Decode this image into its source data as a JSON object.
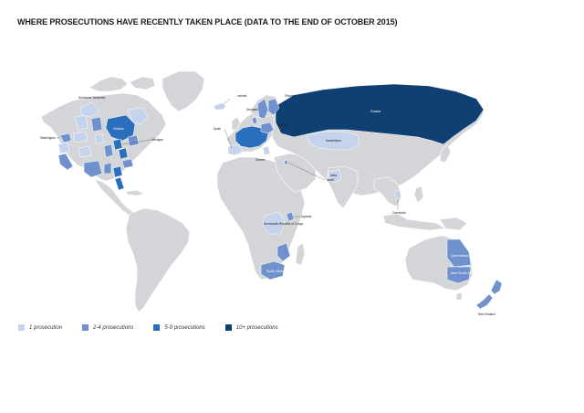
{
  "title": "WHERE PROSECUTIONS HAVE RECENTLY TAKEN PLACE (DATA TO THE END OF OCTOBER 2015)",
  "colors": {
    "land": "#d4d5d9",
    "tier1": "#c5d3ec",
    "tier2": "#6f92cf",
    "tier3": "#2a6fbe",
    "tier4": "#0f3f73"
  },
  "legend": [
    {
      "label": "1 prosecution",
      "color": "#c5d3ec"
    },
    {
      "label": "2-4 prosecutions",
      "color": "#6f92cf"
    },
    {
      "label": "5-9 prosecutions",
      "color": "#2a6fbe"
    },
    {
      "label": "10+ prosecutions",
      "color": "#0f3f73"
    }
  ],
  "regions": {
    "russia": "Russia",
    "kazakhstan": "Kazakhstan",
    "iceland": "Iceland",
    "drc": "Democratic Republic of Congo",
    "queensland": "Queensland",
    "nsw": "New South Wales",
    "new_zealand": "New Zealand",
    "south_africa": "South Africa",
    "ontario": "Ontario",
    "nunavut": "Northwest Territories",
    "washington": "Washington",
    "michigan": "Michigan",
    "uganda": "Uganda",
    "cambodia": "Cambodia",
    "india": "India",
    "spain": "Spain",
    "greece": "Greece",
    "denmark": "Denmark",
    "finland": "Finland",
    "poland": "Poland",
    "israel": "Israel"
  }
}
